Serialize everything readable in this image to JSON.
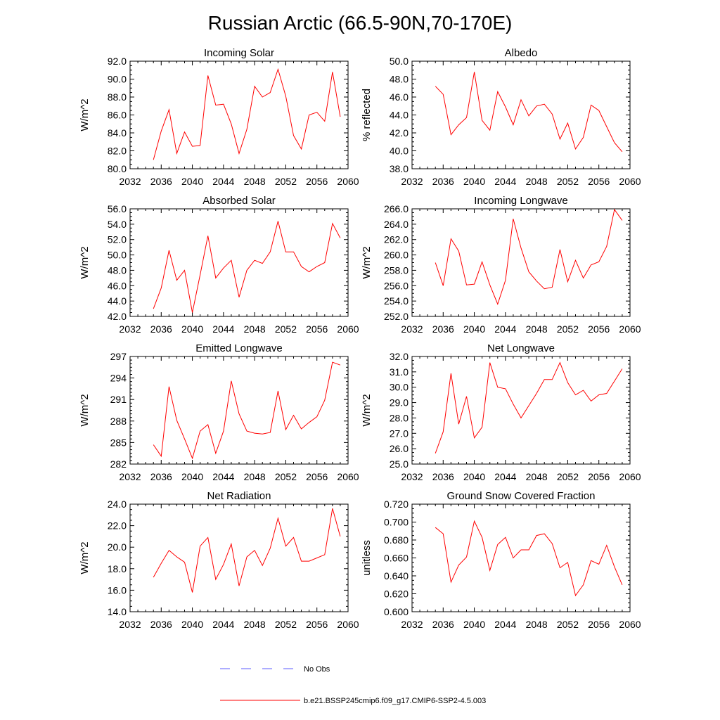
{
  "title": "Russian Arctic (66.5-90N,70-170E)",
  "colors": {
    "model": "#ff0000",
    "obs": "#5b5bff"
  },
  "legend": {
    "obs_label": "No Obs",
    "model_label": "b.e21.BSSP245cmip6.f09_g17.CMIP6-SSP2-4.5.003"
  },
  "chart_data": [
    {
      "type": "line",
      "id": "incoming-solar",
      "title": "Incoming Solar",
      "ylabel": "W/m^2",
      "xlim": [
        2032,
        2060
      ],
      "xticks": [
        2032,
        2036,
        2040,
        2044,
        2048,
        2052,
        2056,
        2060
      ],
      "ylim": [
        80,
        92
      ],
      "yticks": [
        80,
        82,
        84,
        86,
        88,
        90,
        92
      ],
      "yticklabels": [
        "80.0",
        "82.0",
        "84.0",
        "86.0",
        "88.0",
        "90.0",
        "92.0"
      ],
      "yminor": 0.5,
      "series": [
        {
          "name": "b.e21.BSSP245cmip6.f09_g17.CMIP6-SSP2-4.5.003",
          "x": [
            2035,
            2036,
            2037,
            2038,
            2039,
            2040,
            2041,
            2042,
            2043,
            2044,
            2045,
            2046,
            2047,
            2048,
            2049,
            2050,
            2051,
            2052,
            2053,
            2054,
            2055,
            2056,
            2057,
            2058,
            2059
          ],
          "y": [
            81.0,
            84.2,
            86.6,
            81.7,
            84.1,
            82.5,
            82.6,
            90.4,
            87.1,
            87.2,
            85.0,
            81.7,
            84.4,
            89.2,
            88.0,
            88.5,
            91.1,
            88.1,
            83.7,
            82.2,
            86.0,
            86.3,
            85.3,
            90.8,
            85.8
          ]
        }
      ]
    },
    {
      "type": "line",
      "id": "albedo",
      "title": "Albedo",
      "ylabel": "% reflected",
      "xlim": [
        2032,
        2060
      ],
      "xticks": [
        2032,
        2036,
        2040,
        2044,
        2048,
        2052,
        2056,
        2060
      ],
      "ylim": [
        38,
        50
      ],
      "yticks": [
        38,
        40,
        42,
        44,
        46,
        48,
        50
      ],
      "yticklabels": [
        "38.0",
        "40.0",
        "42.0",
        "44.0",
        "46.0",
        "48.0",
        "50.0"
      ],
      "yminor": 0.5,
      "series": [
        {
          "name": "b.e21.BSSP245cmip6.f09_g17.CMIP6-SSP2-4.5.003",
          "x": [
            2035,
            2036,
            2037,
            2038,
            2039,
            2040,
            2041,
            2042,
            2043,
            2044,
            2045,
            2046,
            2047,
            2048,
            2049,
            2050,
            2051,
            2052,
            2053,
            2054,
            2055,
            2056,
            2057,
            2058,
            2059
          ],
          "y": [
            47.2,
            46.3,
            41.8,
            42.9,
            43.7,
            48.8,
            43.4,
            42.3,
            46.6,
            44.9,
            42.9,
            45.7,
            43.9,
            45.0,
            45.2,
            44.1,
            41.3,
            43.1,
            40.2,
            41.5,
            45.1,
            44.5,
            42.7,
            40.9,
            39.9
          ]
        }
      ]
    },
    {
      "type": "line",
      "id": "absorbed-solar",
      "title": "Absorbed Solar",
      "ylabel": "W/m^2",
      "xlim": [
        2032,
        2060
      ],
      "xticks": [
        2032,
        2036,
        2040,
        2044,
        2048,
        2052,
        2056,
        2060
      ],
      "ylim": [
        42,
        56
      ],
      "yticks": [
        42,
        44,
        46,
        48,
        50,
        52,
        54,
        56
      ],
      "yticklabels": [
        "42.0",
        "44.0",
        "46.0",
        "48.0",
        "50.0",
        "52.0",
        "54.0",
        "56.0"
      ],
      "yminor": 0.5,
      "series": [
        {
          "name": "b.e21.BSSP245cmip6.f09_g17.CMIP6-SSP2-4.5.003",
          "x": [
            2035,
            2036,
            2037,
            2038,
            2039,
            2040,
            2041,
            2042,
            2043,
            2044,
            2045,
            2046,
            2047,
            2048,
            2049,
            2050,
            2051,
            2052,
            2053,
            2054,
            2055,
            2056,
            2057,
            2058,
            2059
          ],
          "y": [
            43.0,
            45.7,
            50.6,
            46.7,
            48.0,
            42.5,
            47.4,
            52.5,
            47.0,
            48.3,
            49.3,
            44.5,
            48.0,
            49.3,
            48.9,
            50.4,
            54.4,
            50.4,
            50.4,
            48.5,
            47.8,
            48.5,
            49.0,
            54.1,
            52.2
          ]
        }
      ]
    },
    {
      "type": "line",
      "id": "incoming-longwave",
      "title": "Incoming Longwave",
      "ylabel": "W/m^2",
      "xlim": [
        2032,
        2060
      ],
      "xticks": [
        2032,
        2036,
        2040,
        2044,
        2048,
        2052,
        2056,
        2060
      ],
      "ylim": [
        252,
        266
      ],
      "yticks": [
        252,
        254,
        256,
        258,
        260,
        262,
        264,
        266
      ],
      "yticklabels": [
        "252.0",
        "254.0",
        "256.0",
        "258.0",
        "260.0",
        "262.0",
        "264.0",
        "266.0"
      ],
      "yminor": 0.5,
      "series": [
        {
          "name": "b.e21.BSSP245cmip6.f09_g17.CMIP6-SSP2-4.5.003",
          "x": [
            2035,
            2036,
            2037,
            2038,
            2039,
            2040,
            2041,
            2042,
            2043,
            2044,
            2045,
            2046,
            2047,
            2048,
            2049,
            2050,
            2051,
            2052,
            2053,
            2054,
            2055,
            2056,
            2057,
            2058,
            2059
          ],
          "y": [
            259.0,
            256.0,
            262.1,
            260.5,
            256.1,
            256.2,
            259.1,
            256.1,
            253.6,
            256.7,
            264.7,
            260.9,
            257.8,
            256.6,
            255.6,
            255.8,
            260.7,
            256.5,
            259.3,
            257.0,
            258.7,
            259.1,
            261.1,
            265.9,
            264.5
          ]
        }
      ]
    },
    {
      "type": "line",
      "id": "emitted-longwave",
      "title": "Emitted Longwave",
      "ylabel": "W/m^2",
      "xlim": [
        2032,
        2060
      ],
      "xticks": [
        2032,
        2036,
        2040,
        2044,
        2048,
        2052,
        2056,
        2060
      ],
      "ylim": [
        282,
        297
      ],
      "yticks": [
        282,
        285,
        288,
        291,
        294,
        297
      ],
      "yticklabels": [
        "282",
        "285",
        "288",
        "291",
        "294",
        "297"
      ],
      "yminor": 0.5,
      "series": [
        {
          "name": "b.e21.BSSP245cmip6.f09_g17.CMIP6-SSP2-4.5.003",
          "x": [
            2035,
            2036,
            2037,
            2038,
            2039,
            2040,
            2041,
            2042,
            2043,
            2044,
            2045,
            2046,
            2047,
            2048,
            2049,
            2050,
            2051,
            2052,
            2053,
            2054,
            2055,
            2056,
            2057,
            2058,
            2059
          ],
          "y": [
            284.7,
            283.1,
            292.8,
            288.1,
            285.5,
            282.8,
            286.6,
            287.5,
            283.5,
            286.6,
            293.6,
            289.0,
            286.6,
            286.3,
            286.2,
            286.4,
            292.2,
            286.8,
            288.8,
            286.9,
            287.8,
            288.6,
            290.9,
            296.2,
            295.8
          ]
        }
      ]
    },
    {
      "type": "line",
      "id": "net-longwave",
      "title": "Net Longwave",
      "ylabel": "W/m^2",
      "xlim": [
        2032,
        2060
      ],
      "xticks": [
        2032,
        2036,
        2040,
        2044,
        2048,
        2052,
        2056,
        2060
      ],
      "ylim": [
        25,
        32
      ],
      "yticks": [
        25,
        26,
        27,
        28,
        29,
        30,
        31,
        32
      ],
      "yticklabels": [
        "25.0",
        "26.0",
        "27.0",
        "28.0",
        "29.0",
        "30.0",
        "31.0",
        "32.0"
      ],
      "yminor": 0.25,
      "series": [
        {
          "name": "b.e21.BSSP245cmip6.f09_g17.CMIP6-SSP2-4.5.003",
          "x": [
            2035,
            2036,
            2037,
            2038,
            2039,
            2040,
            2041,
            2042,
            2043,
            2044,
            2045,
            2046,
            2047,
            2048,
            2049,
            2050,
            2051,
            2052,
            2053,
            2054,
            2055,
            2056,
            2057,
            2058,
            2059
          ],
          "y": [
            25.7,
            27.1,
            30.9,
            27.6,
            29.4,
            26.7,
            27.4,
            31.6,
            30.0,
            29.9,
            28.9,
            28.0,
            28.8,
            29.6,
            30.5,
            30.5,
            31.6,
            30.3,
            29.5,
            29.8,
            29.1,
            29.5,
            29.6,
            30.4,
            31.2
          ]
        }
      ]
    },
    {
      "type": "line",
      "id": "net-radiation",
      "title": "Net Radiation",
      "ylabel": "W/m^2",
      "xlim": [
        2032,
        2060
      ],
      "xticks": [
        2032,
        2036,
        2040,
        2044,
        2048,
        2052,
        2056,
        2060
      ],
      "ylim": [
        14,
        24
      ],
      "yticks": [
        14,
        16,
        18,
        20,
        22,
        24
      ],
      "yticklabels": [
        "14.0",
        "16.0",
        "18.0",
        "20.0",
        "22.0",
        "24.0"
      ],
      "yminor": 0.5,
      "series": [
        {
          "name": "b.e21.BSSP245cmip6.f09_g17.CMIP6-SSP2-4.5.003",
          "x": [
            2035,
            2036,
            2037,
            2038,
            2039,
            2040,
            2041,
            2042,
            2043,
            2044,
            2045,
            2046,
            2047,
            2048,
            2049,
            2050,
            2051,
            2052,
            2053,
            2054,
            2055,
            2056,
            2057,
            2058,
            2059
          ],
          "y": [
            17.2,
            18.5,
            19.7,
            19.1,
            18.6,
            15.8,
            20.1,
            20.9,
            17.0,
            18.4,
            20.3,
            16.4,
            19.1,
            19.7,
            18.3,
            19.9,
            22.7,
            20.1,
            20.9,
            18.7,
            18.7,
            19.0,
            19.3,
            23.6,
            21.0
          ]
        }
      ]
    },
    {
      "type": "line",
      "id": "ground-snow-covered-fraction",
      "title": "Ground Snow Covered Fraction",
      "ylabel": "unitless",
      "xlim": [
        2032,
        2060
      ],
      "xticks": [
        2032,
        2036,
        2040,
        2044,
        2048,
        2052,
        2056,
        2060
      ],
      "ylim": [
        0.6,
        0.72
      ],
      "yticks": [
        0.6,
        0.62,
        0.64,
        0.66,
        0.68,
        0.7,
        0.72
      ],
      "yticklabels": [
        "0.600",
        "0.620",
        "0.640",
        "0.660",
        "0.680",
        "0.700",
        "0.720"
      ],
      "yminor": 0.005,
      "series": [
        {
          "name": "b.e21.BSSP245cmip6.f09_g17.CMIP6-SSP2-4.5.003",
          "x": [
            2035,
            2036,
            2037,
            2038,
            2039,
            2040,
            2041,
            2042,
            2043,
            2044,
            2045,
            2046,
            2047,
            2048,
            2049,
            2050,
            2051,
            2052,
            2053,
            2054,
            2055,
            2056,
            2057,
            2058,
            2059
          ],
          "y": [
            0.694,
            0.687,
            0.633,
            0.652,
            0.661,
            0.701,
            0.683,
            0.646,
            0.675,
            0.683,
            0.66,
            0.669,
            0.669,
            0.685,
            0.687,
            0.676,
            0.649,
            0.655,
            0.618,
            0.63,
            0.657,
            0.653,
            0.674,
            0.65,
            0.63
          ]
        }
      ]
    }
  ]
}
